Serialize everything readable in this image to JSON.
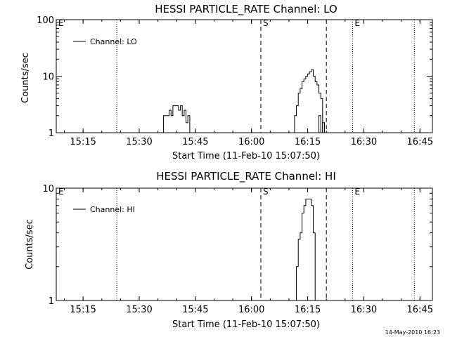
{
  "footer": {
    "timestamp": "14-May-2010 16:23"
  },
  "chart_data": [
    {
      "type": "line",
      "title": "HESSI PARTICLE_RATE Channel: LO",
      "xlabel": "Start Time (11-Feb-10 15:07:50)",
      "ylabel": "Counts/sec",
      "yscale": "log",
      "xlim": [
        "15:07:50",
        "16:48:20"
      ],
      "ylim": [
        1,
        100
      ],
      "x_ticks": [
        "15:15",
        "15:30",
        "15:45",
        "16:00",
        "16:15",
        "16:30",
        "16:45"
      ],
      "y_ticks": [
        "1",
        "10",
        "100"
      ],
      "legend": {
        "label": "Channel: LO",
        "placement": "top-left"
      },
      "grid": false,
      "markers": [
        {
          "time": "15:07:50",
          "label": "E",
          "style": "none"
        },
        {
          "time": "15:24:00",
          "label": "",
          "style": "dotted"
        },
        {
          "time": "16:02:30",
          "label": "S",
          "style": "dashed"
        },
        {
          "time": "16:20:00",
          "label": "",
          "style": "dashed"
        },
        {
          "time": "16:27:00",
          "label": "E",
          "style": "dotted"
        },
        {
          "time": "16:43:30",
          "label": "",
          "style": "dotted"
        }
      ],
      "series": [
        {
          "color": "#000000",
          "segments": [
            {
              "t": [
                "15:36:00",
                "15:36:30",
                "15:37:00",
                "15:37:30",
                "15:38:00",
                "15:38:30",
                "15:39:00",
                "15:39:30",
                "15:40:00",
                "15:40:30",
                "15:41:00",
                "15:41:30",
                "15:42:00",
                "15:42:30",
                "15:43:00",
                "15:43:30"
              ],
              "y": [
                1,
                2,
                2,
                2,
                2.5,
                2,
                3,
                3,
                3,
                2.5,
                3,
                2,
                2.5,
                1.5,
                2,
                1
              ]
            },
            {
              "t": [
                "16:11:00",
                "16:11:30",
                "16:12:00",
                "16:12:30",
                "16:13:00",
                "16:13:30",
                "16:14:00",
                "16:14:30",
                "16:15:00",
                "16:15:30",
                "16:16:00",
                "16:16:30",
                "16:17:00",
                "16:17:30",
                "16:18:00",
                "16:18:30",
                "16:19:00"
              ],
              "y": [
                1,
                2,
                3,
                5,
                6,
                8,
                9,
                10,
                11,
                12,
                13,
                10,
                8,
                7,
                5,
                4,
                1
              ]
            },
            {
              "t": [
                "16:17:30",
                "16:18:00",
                "16:18:30",
                "16:19:00",
                "16:19:30"
              ],
              "y": [
                1,
                2,
                1,
                1.5,
                1
              ]
            }
          ]
        }
      ]
    },
    {
      "type": "line",
      "title": "HESSI PARTICLE_RATE Channel: HI",
      "xlabel": "Start Time (11-Feb-10 15:07:50)",
      "ylabel": "Counts/sec",
      "yscale": "log",
      "xlim": [
        "15:07:50",
        "16:48:20"
      ],
      "ylim": [
        1,
        10
      ],
      "x_ticks": [
        "15:15",
        "15:30",
        "15:45",
        "16:00",
        "16:15",
        "16:30",
        "16:45"
      ],
      "y_ticks": [
        "1",
        "10"
      ],
      "legend": {
        "label": "Channel: HI",
        "placement": "top-left"
      },
      "grid": false,
      "markers": [
        {
          "time": "15:07:50",
          "label": "E",
          "style": "none"
        },
        {
          "time": "15:24:00",
          "label": "",
          "style": "dotted"
        },
        {
          "time": "16:02:30",
          "label": "S",
          "style": "dashed"
        },
        {
          "time": "16:20:00",
          "label": "",
          "style": "dashed"
        },
        {
          "time": "16:27:00",
          "label": "E",
          "style": "dotted"
        },
        {
          "time": "16:43:30",
          "label": "",
          "style": "dotted"
        }
      ],
      "series": [
        {
          "color": "#000000",
          "segments": [
            {
              "t": [
                "16:11:30",
                "16:12:00",
                "16:12:30",
                "16:13:00",
                "16:13:30",
                "16:14:00",
                "16:14:30",
                "16:15:00",
                "16:15:30",
                "16:16:00",
                "16:16:30",
                "16:17:00"
              ],
              "y": [
                1,
                2,
                3.5,
                4,
                6,
                7,
                8,
                8,
                8,
                7,
                4,
                1
              ]
            }
          ]
        }
      ]
    }
  ]
}
